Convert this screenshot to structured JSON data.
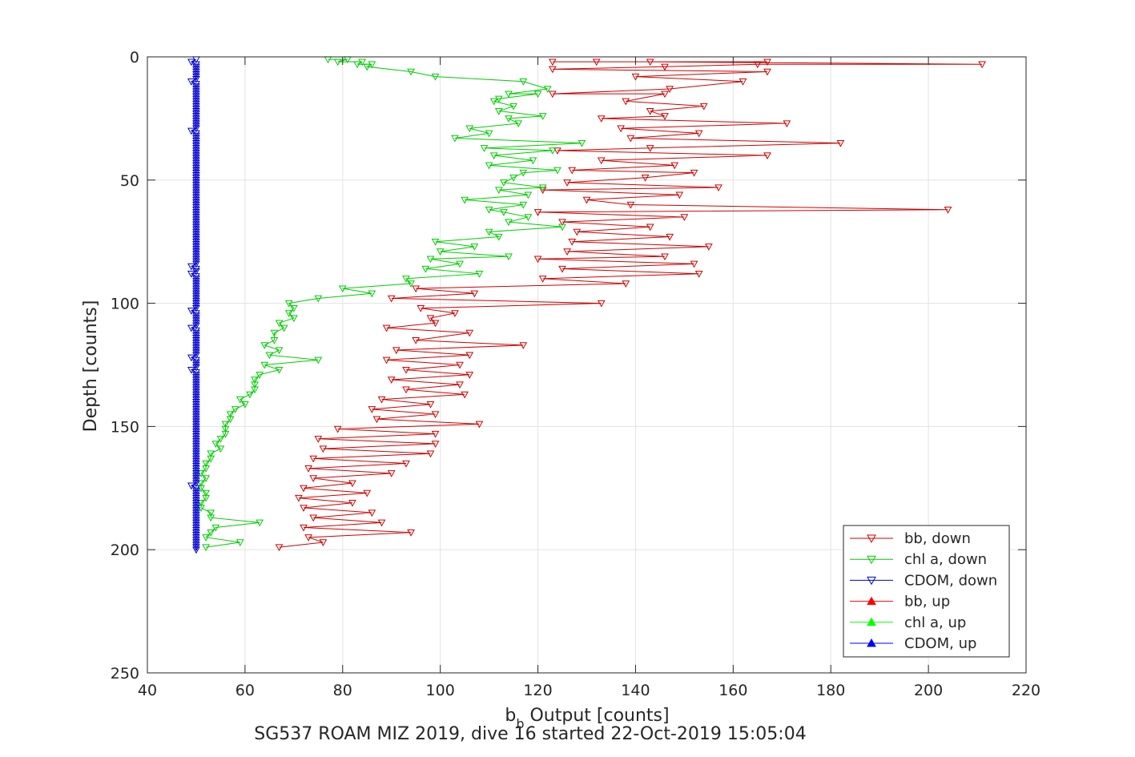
{
  "chart_data": {
    "type": "line",
    "title": "",
    "xlabel": "b",
    "xlabel_subscript": "b",
    "xlabel_suffix": " Output [counts]",
    "ylabel": "Depth [counts]",
    "caption": "SG537 ROAM MIZ 2019, dive 16 started 22-Oct-2019 15:05:04",
    "xlim": [
      40,
      220
    ],
    "ylim": [
      0,
      250
    ],
    "y_reversed": true,
    "grid": true,
    "x_ticks": [
      40,
      60,
      80,
      100,
      120,
      140,
      160,
      180,
      200,
      220
    ],
    "y_ticks": [
      0,
      50,
      100,
      150,
      200,
      250
    ],
    "legend_position": "bottom-right",
    "legend": [
      "bb, down",
      "chl a, down",
      "CDOM, down",
      "bb, up",
      "chl a, up",
      "CDOM, up"
    ],
    "series": [
      {
        "name": "bb, down",
        "color": "#cc0000",
        "marker": "triangle-down",
        "depth": [
          2,
          2,
          2,
          2,
          3,
          3,
          4,
          5,
          6,
          8,
          10,
          13,
          15,
          15,
          18,
          20,
          22,
          24,
          25,
          27,
          29,
          31,
          33,
          35,
          37,
          38,
          40,
          42,
          44,
          46,
          47,
          49,
          51,
          53,
          54,
          56,
          58,
          60,
          62,
          63,
          65,
          67,
          69,
          71,
          73,
          75,
          77,
          79,
          81,
          82,
          84,
          86,
          88,
          90,
          92,
          94,
          96,
          98,
          100,
          102,
          104,
          106,
          108,
          110,
          112,
          115,
          117,
          119,
          121,
          123,
          125,
          127,
          129,
          131,
          133,
          135,
          137,
          139,
          141,
          143,
          145,
          147,
          149,
          151,
          153,
          155,
          157,
          159,
          161,
          163,
          165,
          167,
          169,
          171,
          173,
          175,
          177,
          179,
          181,
          183,
          185,
          187,
          189,
          191,
          193,
          195,
          197,
          199
        ],
        "values": [
          123,
          167,
          132,
          143,
          211,
          165,
          146,
          123,
          167,
          140,
          162,
          147,
          123,
          146,
          138,
          154,
          143,
          146,
          133,
          171,
          137,
          153,
          139,
          182,
          143,
          124,
          167,
          133,
          148,
          127,
          152,
          142,
          126,
          157,
          121,
          149,
          130,
          139,
          204,
          120,
          150,
          125,
          143,
          128,
          147,
          127,
          155,
          126,
          146,
          120,
          152,
          125,
          153,
          121,
          138,
          95,
          107,
          90,
          133,
          96,
          103,
          98,
          99,
          89,
          106,
          95,
          117,
          91,
          106,
          89,
          104,
          93,
          106,
          90,
          104,
          93,
          105,
          88,
          98,
          86,
          99,
          87,
          108,
          79,
          99,
          75,
          99,
          76,
          98,
          74,
          93,
          73,
          90,
          74,
          82,
          72,
          85,
          71,
          82,
          72,
          86,
          74,
          88,
          72,
          94,
          73,
          76,
          67
        ]
      },
      {
        "name": "chl a, down",
        "color": "#00cc00",
        "marker": "triangle-down",
        "depth": [
          1,
          1,
          2,
          2,
          3,
          3,
          4,
          6,
          8,
          10,
          13,
          15,
          15,
          17,
          18,
          20,
          22,
          24,
          25,
          27,
          29,
          31,
          33,
          35,
          37,
          38,
          40,
          42,
          44,
          46,
          47,
          49,
          51,
          53,
          54,
          56,
          58,
          60,
          62,
          63,
          65,
          67,
          69,
          71,
          73,
          75,
          77,
          79,
          81,
          82,
          84,
          86,
          88,
          90,
          92,
          94,
          96,
          98,
          100,
          102,
          104,
          106,
          108,
          110,
          112,
          115,
          117,
          119,
          121,
          123,
          125,
          127,
          129,
          131,
          133,
          135,
          137,
          139,
          141,
          143,
          145,
          147,
          149,
          151,
          153,
          155,
          157,
          159,
          161,
          163,
          165,
          167,
          169,
          171,
          173,
          175,
          177,
          179,
          181,
          183,
          185,
          187,
          189,
          191,
          193,
          195,
          197,
          199
        ],
        "values": [
          77,
          81,
          79,
          84,
          83,
          86,
          85,
          94,
          99,
          117,
          122,
          114,
          120,
          112,
          111,
          115,
          112,
          121,
          114,
          116,
          106,
          110,
          103,
          129,
          109,
          123,
          111,
          119,
          110,
          124,
          117,
          115,
          113,
          121,
          112,
          118,
          105,
          117,
          110,
          113,
          118,
          114,
          125,
          110,
          112,
          99,
          107,
          100,
          114,
          98,
          104,
          97,
          108,
          93,
          94,
          80,
          86,
          75,
          69,
          70,
          69,
          70,
          67,
          68,
          66,
          66,
          64,
          67,
          65,
          75,
          64,
          67,
          63,
          62,
          62,
          62,
          61,
          59,
          60,
          58,
          57,
          57,
          56,
          56,
          56,
          55,
          54,
          55,
          53,
          53,
          52,
          52,
          51,
          52,
          51,
          51,
          52,
          52,
          51,
          51,
          53,
          53,
          63,
          54,
          53,
          52,
          59,
          52
        ]
      },
      {
        "name": "CDOM, down",
        "color": "#0000cc",
        "marker": "triangle-down",
        "depth_start": 1,
        "depth_end": 200,
        "value": 50,
        "outliers": [
          {
            "depth": 2,
            "value": 49
          },
          {
            "depth": 10,
            "value": 49
          },
          {
            "depth": 30,
            "value": 49
          },
          {
            "depth": 85,
            "value": 49
          },
          {
            "depth": 88,
            "value": 49
          },
          {
            "depth": 103,
            "value": 49
          },
          {
            "depth": 110,
            "value": 49
          },
          {
            "depth": 122,
            "value": 49
          },
          {
            "depth": 127,
            "value": 49
          },
          {
            "depth": 174,
            "value": 49
          }
        ]
      },
      {
        "name": "bb, up",
        "color": "#ff0000",
        "marker": "triangle-up",
        "values": []
      },
      {
        "name": "chl a, up",
        "color": "#00ff00",
        "marker": "triangle-up",
        "values": []
      },
      {
        "name": "CDOM, up",
        "color": "#0000ff",
        "marker": "triangle-up",
        "values": []
      }
    ]
  }
}
